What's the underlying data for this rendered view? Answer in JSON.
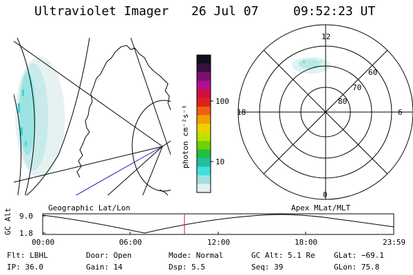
{
  "header": {
    "title": "Ultraviolet Imager",
    "date": "26 Jul 07",
    "time": "09:52:23 UT"
  },
  "colorbar": {
    "unit_label": "photon cm⁻²s⁻¹",
    "ticks": [
      "100",
      "10"
    ],
    "colors": [
      "#101020",
      "#3a1040",
      "#7a1070",
      "#b01090",
      "#d01040",
      "#e02020",
      "#f06010",
      "#f0a000",
      "#f0d000",
      "#c0e000",
      "#70d000",
      "#20c040",
      "#20c0a0",
      "#40e0e0",
      "#a0e0e0",
      "#e0f0f0"
    ]
  },
  "polar": {
    "hour_labels": {
      "top": "12",
      "left": "18",
      "right": "6",
      "bottom": "0"
    },
    "lat_labels": [
      "60",
      "70",
      "80"
    ]
  },
  "panels": {
    "left_caption": "Geographic Lat/Lon",
    "right_caption": "Apex MLat/MLT"
  },
  "altitude_plot": {
    "ylabel": "GC Alt",
    "y_ticks": [
      "9.0",
      "1.8"
    ],
    "x_ticks": [
      "00:00",
      "06:00",
      "12:00",
      "18:00",
      "23:59"
    ]
  },
  "status": {
    "row1": {
      "flt": "Flt: LBHL",
      "door": "Door: Open",
      "mode": "Mode: Normal",
      "gcalt": "GC Alt: 5.1 Re",
      "glat": "GLat: −69.1"
    },
    "row2": {
      "ip": "IP: 36.0",
      "gain": "Gain: 14",
      "dsp": "Dsp:    5.5",
      "seq": "Seq: 39",
      "glon": "GLon:  75.8"
    }
  }
}
